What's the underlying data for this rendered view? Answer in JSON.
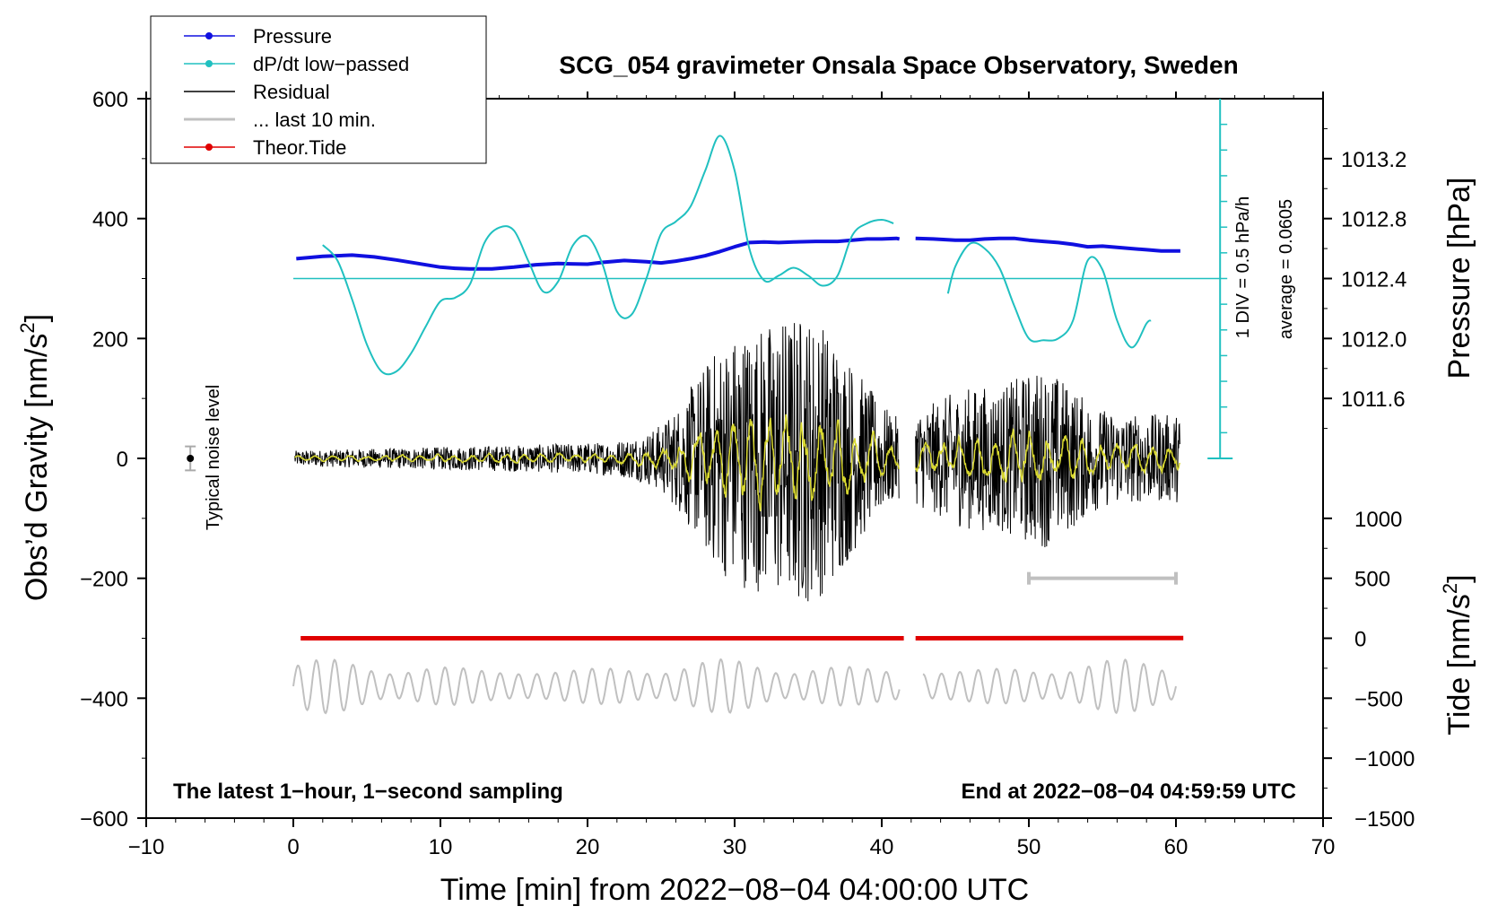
{
  "chart_data": {
    "type": "line",
    "title": "SCG_054 gravimeter Onsala Space Observatory, Sweden",
    "xlabel": "Time [min] from 2022−08−04 04:00:00 UTC",
    "ylabel_left_main": "Obs’d Gravity [nm/s",
    "ylabel_left_sup": "2",
    "ylabel_left_close": "]",
    "ylabel_right_upper": "Pressure [hPa]",
    "ylabel_right_lower_main": "Tide [nm/s",
    "ylabel_right_lower_sup": "2",
    "ylabel_right_lower_close": "]",
    "xlim": [
      -10,
      70
    ],
    "ylim": [
      -600,
      600
    ],
    "x_ticks": [
      "−10",
      "0",
      "10",
      "20",
      "30",
      "40",
      "50",
      "60",
      "70"
    ],
    "x_tick_values": [
      -10,
      0,
      10,
      20,
      30,
      40,
      50,
      60,
      70
    ],
    "y_ticks": [
      "600",
      "400",
      "200",
      "0",
      "−200",
      "−400",
      "−600"
    ],
    "y_tick_values": [
      600,
      400,
      200,
      0,
      -200,
      -400,
      -600
    ],
    "pressure_ticks": [
      "1013.2",
      "1012.8",
      "1012.4",
      "1012.0",
      "1011.6"
    ],
    "pressure_tick_values": [
      1013.2,
      1012.8,
      1012.4,
      1012.0,
      1011.6
    ],
    "pressure_gravity_map": {
      "p_at_300": 1012.4,
      "gravity_per_hpa": 250
    },
    "tide_ticks": [
      "1000",
      "500",
      "0",
      "−500",
      "−1000",
      "−1500"
    ],
    "tide_tick_values": [
      1000,
      500,
      0,
      -500,
      -1000,
      -1500
    ],
    "tide_gravity_map": {
      "zero_at": -300,
      "gravity_per_unit": 0.2
    },
    "legend": [
      {
        "label": "Pressure",
        "color": "#1010e0",
        "marker": true
      },
      {
        "label": "dP/dt low−passed",
        "color": "#20c0c0",
        "marker": true
      },
      {
        "label": "Residual",
        "color": "#000000",
        "marker": false
      },
      {
        "label": "... last 10 min.",
        "color": "#c0c0c0",
        "marker": false
      },
      {
        "label": "Theor.Tide",
        "color": "#e00000",
        "marker": true
      }
    ],
    "annotations": {
      "typical_noise": "Typical noise level",
      "div_label": "1 DIV = 0.5 hPa/h",
      "average_label": "average = 0.0605",
      "bottom_left": "The latest 1−hour, 1−second sampling",
      "bottom_right": "End at 2022−08−04 04:59:59 UTC"
    },
    "noise_level": {
      "x": -7,
      "y": 0,
      "err": 20
    },
    "scale_bar_last10": {
      "x_start": 50,
      "x_end": 60,
      "y": -200
    },
    "dpdt_zero_line": 300,
    "series": [
      {
        "name": "Pressure",
        "color": "#1010e0",
        "segments": [
          [
            [
              0.2,
              333
            ],
            [
              2,
              337
            ],
            [
              4,
              339
            ],
            [
              5.5,
              336
            ],
            [
              7,
              331
            ],
            [
              8.5,
              325
            ],
            [
              10,
              319
            ],
            [
              11,
              317
            ],
            [
              12,
              316
            ],
            [
              13.5,
              316
            ],
            [
              15,
              319
            ],
            [
              16.5,
              323
            ],
            [
              18,
              325
            ],
            [
              20,
              324
            ],
            [
              21,
              327
            ],
            [
              22.5,
              330
            ],
            [
              24,
              328
            ],
            [
              25,
              326
            ],
            [
              26,
              329
            ],
            [
              27,
              333
            ],
            [
              28,
              338
            ],
            [
              29,
              345
            ],
            [
              30,
              353
            ],
            [
              31,
              360
            ],
            [
              32,
              361
            ],
            [
              33,
              360
            ],
            [
              34,
              361
            ],
            [
              35.5,
              362
            ],
            [
              37,
              362
            ],
            [
              38,
              364
            ],
            [
              39,
              366
            ],
            [
              40,
              366
            ],
            [
              41,
              367
            ],
            [
              41.2,
              366
            ]
          ],
          [
            [
              42.3,
              367
            ],
            [
              43.5,
              366
            ],
            [
              45,
              364
            ],
            [
              46,
              364
            ],
            [
              47,
              366
            ],
            [
              48,
              367
            ],
            [
              49,
              367
            ],
            [
              50,
              364
            ],
            [
              51,
              362
            ],
            [
              52,
              360
            ],
            [
              53,
              357
            ],
            [
              54,
              353
            ],
            [
              55,
              354
            ],
            [
              56,
              352
            ],
            [
              57,
              350
            ],
            [
              58,
              348
            ],
            [
              59,
              346
            ],
            [
              60,
              346
            ],
            [
              60.3,
              346
            ]
          ]
        ]
      },
      {
        "name": "dP/dt low-passed",
        "color": "#20c0c0",
        "segments": [
          [
            [
              2,
              356
            ],
            [
              3,
              330
            ],
            [
              4,
              265
            ],
            [
              5,
              190
            ],
            [
              6,
              145
            ],
            [
              7,
              145
            ],
            [
              8,
              175
            ],
            [
              9,
              220
            ],
            [
              10,
              262
            ],
            [
              11,
              268
            ],
            [
              12,
              290
            ],
            [
              13,
              360
            ],
            [
              14,
              385
            ],
            [
              15,
              380
            ],
            [
              16,
              328
            ],
            [
              17,
              278
            ],
            [
              18,
              295
            ],
            [
              19,
              355
            ],
            [
              20,
              370
            ],
            [
              21,
              325
            ],
            [
              22,
              245
            ],
            [
              23,
              240
            ],
            [
              24,
              300
            ],
            [
              25,
              375
            ],
            [
              26,
              395
            ],
            [
              27,
              420
            ],
            [
              28,
              480
            ],
            [
              29,
              538
            ],
            [
              30,
              480
            ],
            [
              31,
              350
            ],
            [
              32,
              297
            ],
            [
              33,
              305
            ],
            [
              34,
              318
            ],
            [
              35,
              305
            ],
            [
              36,
              288
            ],
            [
              37,
              305
            ],
            [
              38,
              372
            ],
            [
              39,
              392
            ],
            [
              40,
              398
            ],
            [
              40.8,
              392
            ]
          ],
          [
            [
              44.5,
              275
            ],
            [
              45,
              320
            ],
            [
              46,
              358
            ],
            [
              47,
              350
            ],
            [
              48,
              318
            ],
            [
              49,
              255
            ],
            [
              50,
              200
            ],
            [
              51,
              197
            ],
            [
              52,
              200
            ],
            [
              53,
              230
            ],
            [
              54,
              330
            ],
            [
              55,
              315
            ],
            [
              56,
              230
            ],
            [
              57,
              185
            ],
            [
              58,
              225
            ],
            [
              58.3,
              230
            ]
          ]
        ]
      },
      {
        "name": "Theor.Tide",
        "color": "#e00000",
        "segments": [
          [
            [
              0.5,
              0
            ],
            [
              41.5,
              0
            ]
          ],
          [
            [
              42.3,
              0
            ],
            [
              60.5,
              2
            ]
          ]
        ]
      }
    ]
  }
}
